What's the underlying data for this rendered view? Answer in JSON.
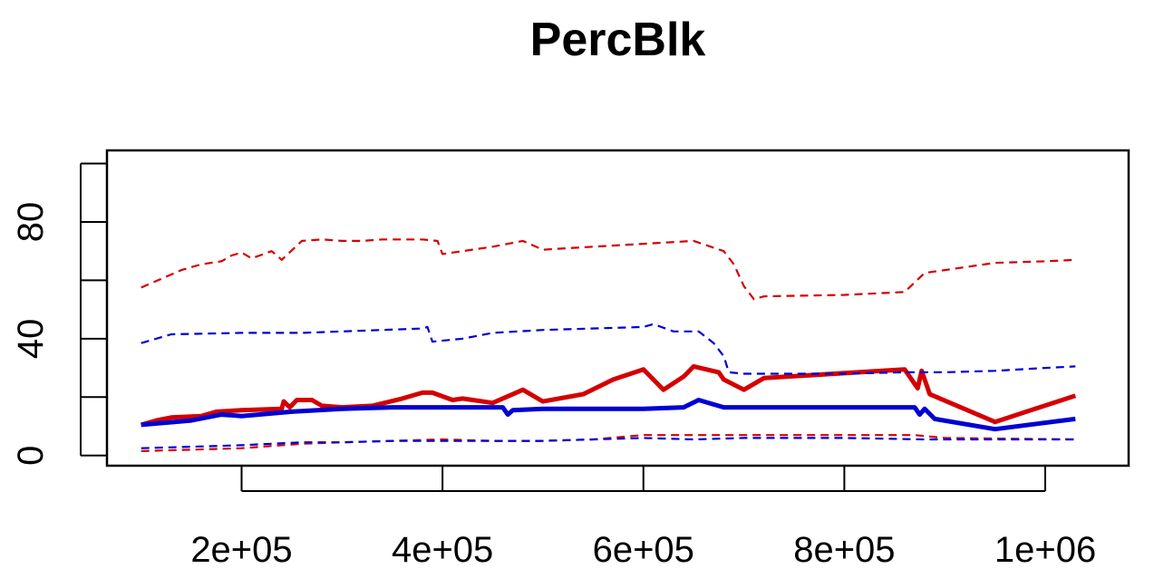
{
  "chart_data": {
    "type": "line",
    "title": "PercBlk",
    "xlabel": "",
    "ylabel": "",
    "xlim": [
      66000,
      1083000
    ],
    "ylim": [
      -3.5,
      104.5
    ],
    "x_ticks": [
      200000,
      400000,
      600000,
      800000,
      1000000
    ],
    "x_tick_labels": [
      "2e+05",
      "4e+05",
      "6e+05",
      "8e+05",
      "1e+06"
    ],
    "y_ticks": [
      0,
      20,
      40,
      60,
      80,
      100
    ],
    "y_tick_labels": [
      "0",
      "40",
      "80"
    ],
    "y_labeled_ticks": [
      0,
      40,
      80
    ],
    "grid": false,
    "legend": "none",
    "series": [
      {
        "color": "#d40000",
        "style": "solid",
        "points": [
          [
            100000,
            10.5
          ],
          [
            115000,
            12
          ],
          [
            130000,
            13
          ],
          [
            160000,
            13.5
          ],
          [
            175000,
            15
          ],
          [
            200000,
            15.5
          ],
          [
            240000,
            16
          ],
          [
            242000,
            18.5
          ],
          [
            248000,
            16.5
          ],
          [
            255000,
            19
          ],
          [
            270000,
            19
          ],
          [
            280000,
            17
          ],
          [
            300000,
            16.5
          ],
          [
            330000,
            17
          ],
          [
            360000,
            19.5
          ],
          [
            380000,
            21.5
          ],
          [
            390000,
            21.5
          ],
          [
            410000,
            19
          ],
          [
            420000,
            19.5
          ],
          [
            450000,
            18
          ],
          [
            470000,
            21
          ],
          [
            480000,
            22.5
          ],
          [
            500000,
            18.5
          ],
          [
            540000,
            21
          ],
          [
            570000,
            26
          ],
          [
            600000,
            29.5
          ],
          [
            620000,
            22.5
          ],
          [
            640000,
            27
          ],
          [
            650000,
            30.5
          ],
          [
            675000,
            28.5
          ],
          [
            680000,
            26
          ],
          [
            700000,
            22.5
          ],
          [
            720000,
            26.5
          ],
          [
            860000,
            29.5
          ],
          [
            873000,
            23
          ],
          [
            877000,
            29
          ],
          [
            885000,
            21
          ],
          [
            950000,
            11.5
          ],
          [
            1030000,
            20.5
          ]
        ]
      },
      {
        "color": "#0000d4",
        "style": "solid",
        "points": [
          [
            100000,
            10.5
          ],
          [
            150000,
            12
          ],
          [
            180000,
            14
          ],
          [
            200000,
            13.5
          ],
          [
            250000,
            15
          ],
          [
            300000,
            16
          ],
          [
            350000,
            16.5
          ],
          [
            400000,
            16.5
          ],
          [
            460000,
            16.5
          ],
          [
            465000,
            14
          ],
          [
            470000,
            15.5
          ],
          [
            500000,
            16
          ],
          [
            600000,
            16
          ],
          [
            640000,
            16.5
          ],
          [
            655000,
            19
          ],
          [
            680000,
            16.5
          ],
          [
            720000,
            16.5
          ],
          [
            870000,
            16.5
          ],
          [
            875000,
            14
          ],
          [
            880000,
            16
          ],
          [
            890000,
            12.5
          ],
          [
            950000,
            9
          ],
          [
            1030000,
            12.5
          ]
        ]
      },
      {
        "color": "#d40000",
        "style": "dashed",
        "points": [
          [
            100000,
            57.5
          ],
          [
            120000,
            60.5
          ],
          [
            140000,
            63.5
          ],
          [
            160000,
            65.5
          ],
          [
            180000,
            66.5
          ],
          [
            190000,
            68.5
          ],
          [
            200000,
            69.5
          ],
          [
            210000,
            67.5
          ],
          [
            230000,
            70
          ],
          [
            240000,
            67
          ],
          [
            260000,
            73.5
          ],
          [
            280000,
            74
          ],
          [
            300000,
            73.5
          ],
          [
            320000,
            73.5
          ],
          [
            340000,
            74
          ],
          [
            380000,
            74
          ],
          [
            395000,
            73.5
          ],
          [
            400000,
            69
          ],
          [
            420000,
            70
          ],
          [
            450000,
            71.5
          ],
          [
            480000,
            73.5
          ],
          [
            500000,
            70.5
          ],
          [
            550000,
            71.5
          ],
          [
            600000,
            72.5
          ],
          [
            650000,
            73.5
          ],
          [
            680000,
            70
          ],
          [
            690000,
            65.5
          ],
          [
            700000,
            58
          ],
          [
            710000,
            53.5
          ],
          [
            720000,
            54.5
          ],
          [
            800000,
            55
          ],
          [
            860000,
            56
          ],
          [
            880000,
            62.5
          ],
          [
            900000,
            63.5
          ],
          [
            950000,
            66
          ],
          [
            1000000,
            66.5
          ],
          [
            1030000,
            67
          ]
        ]
      },
      {
        "color": "#0000d4",
        "style": "dashed",
        "points": [
          [
            100000,
            38.5
          ],
          [
            130000,
            41.5
          ],
          [
            200000,
            42
          ],
          [
            260000,
            42
          ],
          [
            300000,
            42.5
          ],
          [
            380000,
            43.5
          ],
          [
            385000,
            44
          ],
          [
            390000,
            39
          ],
          [
            420000,
            40
          ],
          [
            450000,
            42
          ],
          [
            500000,
            43
          ],
          [
            600000,
            44
          ],
          [
            610000,
            45
          ],
          [
            630000,
            42.5
          ],
          [
            655000,
            42.5
          ],
          [
            670000,
            38.5
          ],
          [
            680000,
            34
          ],
          [
            685000,
            28.5
          ],
          [
            700000,
            28
          ],
          [
            800000,
            28
          ],
          [
            860000,
            28.5
          ],
          [
            900000,
            28.5
          ],
          [
            950000,
            29
          ],
          [
            1000000,
            30
          ],
          [
            1030000,
            30.5
          ]
        ]
      },
      {
        "color": "#d40000",
        "style": "dashed",
        "points": [
          [
            100000,
            1.5
          ],
          [
            150000,
            2
          ],
          [
            200000,
            2.5
          ],
          [
            260000,
            4
          ],
          [
            300000,
            4.5
          ],
          [
            350000,
            5
          ],
          [
            400000,
            5.5
          ],
          [
            450000,
            5
          ],
          [
            500000,
            5
          ],
          [
            550000,
            5.5
          ],
          [
            600000,
            7
          ],
          [
            650000,
            7
          ],
          [
            700000,
            7
          ],
          [
            800000,
            7
          ],
          [
            870000,
            7
          ],
          [
            900000,
            6
          ],
          [
            1030000,
            5.5
          ]
        ]
      },
      {
        "color": "#0000d4",
        "style": "dashed",
        "points": [
          [
            100000,
            2.5
          ],
          [
            150000,
            3
          ],
          [
            200000,
            3.5
          ],
          [
            260000,
            4.5
          ],
          [
            300000,
            4.5
          ],
          [
            350000,
            5
          ],
          [
            400000,
            5
          ],
          [
            500000,
            5
          ],
          [
            600000,
            6
          ],
          [
            650000,
            5.5
          ],
          [
            700000,
            6
          ],
          [
            800000,
            6
          ],
          [
            880000,
            5.5
          ],
          [
            1030000,
            5.5
          ]
        ]
      }
    ]
  }
}
